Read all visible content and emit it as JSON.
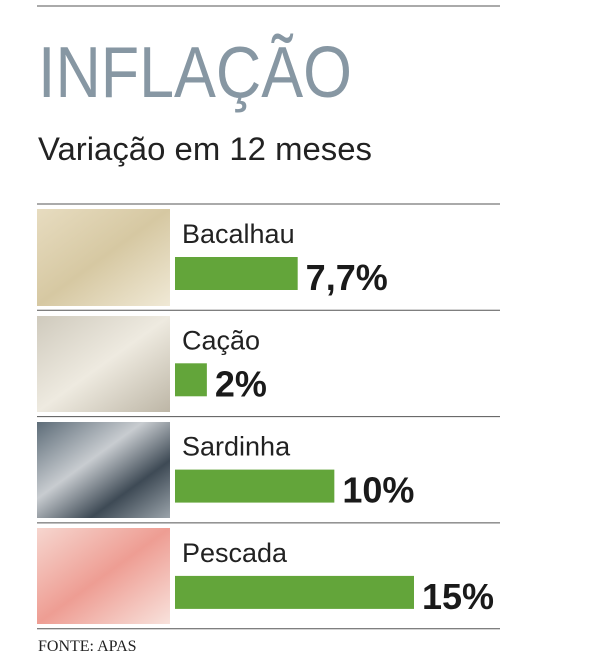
{
  "chart_data": {
    "type": "bar",
    "title": "INFLAÇÃO",
    "subtitle": "Variação em 12 meses",
    "categories": [
      "Bacalhau",
      "Cação",
      "Sardinha",
      "Pescada"
    ],
    "values": [
      7.7,
      2,
      10,
      15
    ],
    "value_labels": [
      "7,7%",
      "2%",
      "10%",
      "15%"
    ],
    "color": "#63a53a",
    "source": "FONTE: APAS"
  }
}
